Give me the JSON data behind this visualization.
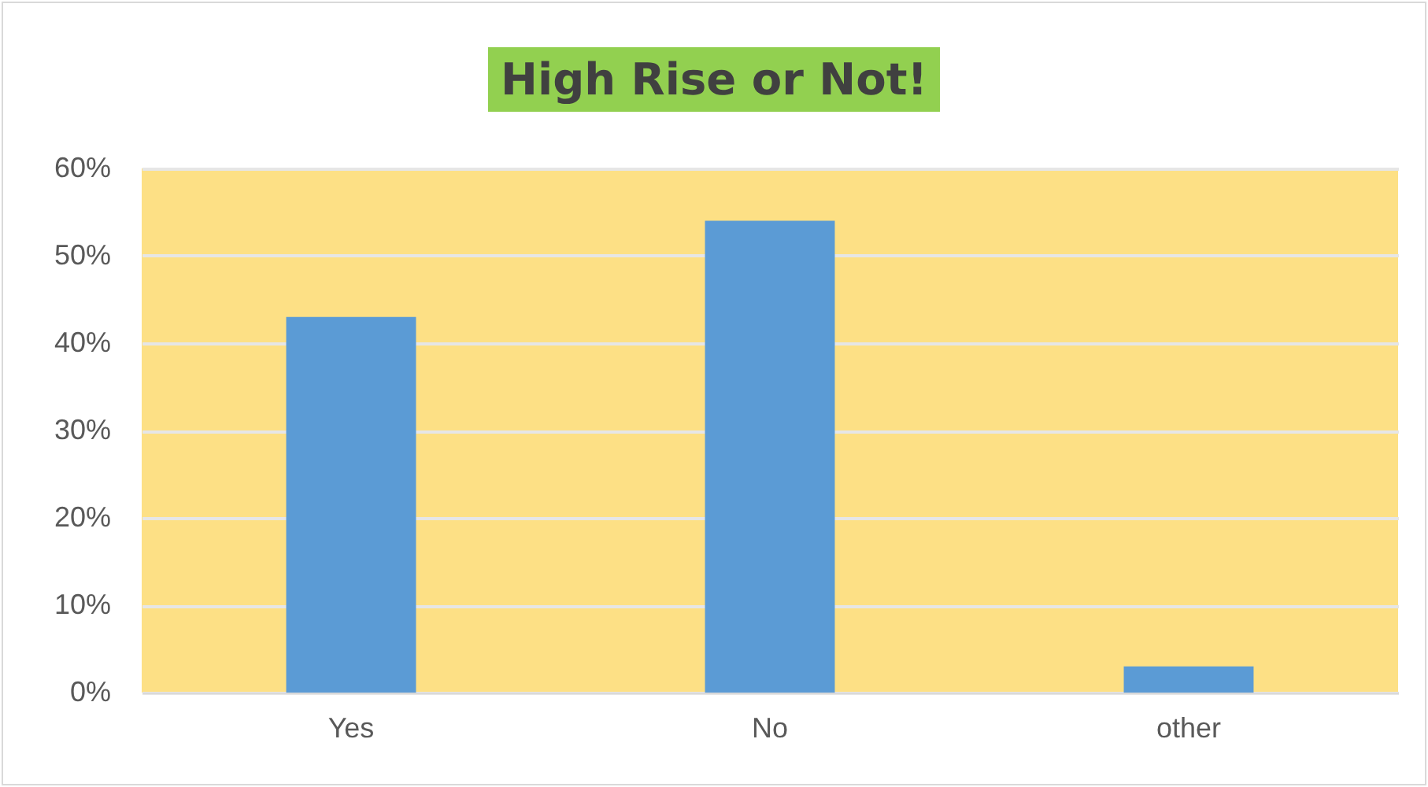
{
  "chart_data": {
    "type": "bar",
    "title": "High Rise or Not!",
    "categories": [
      "Yes",
      "No",
      "other"
    ],
    "values": [
      43,
      54,
      3
    ],
    "color": "#5b9bd5",
    "ylim": [
      0,
      60
    ],
    "yticks": [
      {
        "value": 0,
        "label": "0%"
      },
      {
        "value": 10,
        "label": "10%"
      },
      {
        "value": 20,
        "label": "20%"
      },
      {
        "value": 30,
        "label": "30%"
      },
      {
        "value": 40,
        "label": "40%"
      },
      {
        "value": 50,
        "label": "50%"
      },
      {
        "value": 60,
        "label": "60%"
      }
    ],
    "grid": true
  }
}
